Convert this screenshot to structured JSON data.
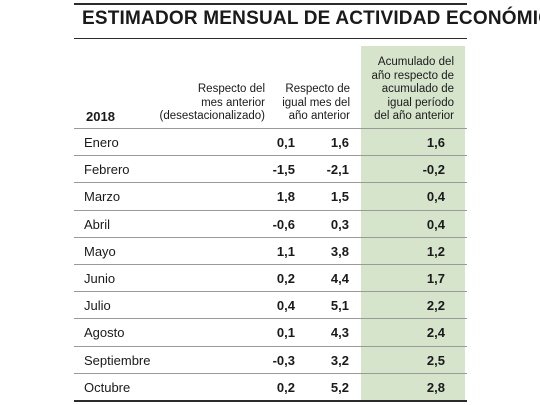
{
  "chart_data": {
    "type": "table",
    "title": "ESTIMADOR MENSUAL DE ACTIVIDAD ECONÓMICA",
    "year_label": "2018",
    "columns": [
      [
        "Respecto del",
        "mes anterior",
        "(desestacionalizado)"
      ],
      [
        "Respecto de",
        "igual mes del",
        "año anterior"
      ],
      [
        "Acumulado del",
        "año respecto de",
        "acumulado de",
        "igual período",
        "del año anterior"
      ]
    ],
    "rows": [
      {
        "month": "Enero",
        "v1": "0,1",
        "v2": "1,6",
        "v3": "1,6"
      },
      {
        "month": "Febrero",
        "v1": "-1,5",
        "v2": "-2,1",
        "v3": "-0,2"
      },
      {
        "month": "Marzo",
        "v1": "1,8",
        "v2": "1,5",
        "v3": "0,4"
      },
      {
        "month": "Abril",
        "v1": "-0,6",
        "v2": "0,3",
        "v3": "0,4"
      },
      {
        "month": "Mayo",
        "v1": "1,1",
        "v2": "3,8",
        "v3": "1,2"
      },
      {
        "month": "Junio",
        "v1": "0,2",
        "v2": "4,4",
        "v3": "1,7"
      },
      {
        "month": "Julio",
        "v1": "0,4",
        "v2": "5,1",
        "v3": "2,2"
      },
      {
        "month": "Agosto",
        "v1": "0,1",
        "v2": "4,3",
        "v3": "2,4"
      },
      {
        "month": "Septiembre",
        "v1": "-0,3",
        "v2": "3,2",
        "v3": "2,5"
      },
      {
        "month": "Octubre",
        "v1": "0,2",
        "v2": "5,2",
        "v3": "2,8"
      }
    ],
    "highlight_color": "#d6e4cc"
  }
}
